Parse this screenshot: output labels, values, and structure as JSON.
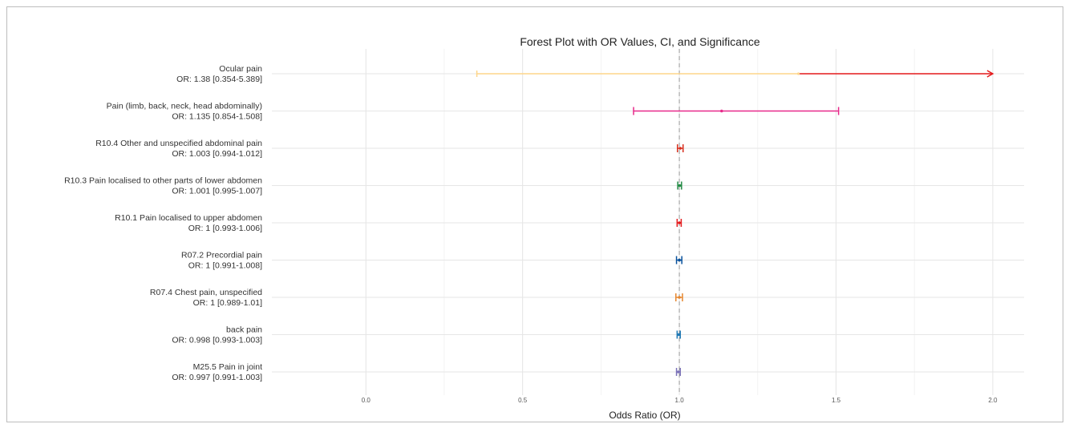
{
  "chart_data": {
    "type": "forest",
    "title": "Forest Plot with OR Values, CI, and Significance",
    "xlabel": "Odds Ratio (OR)",
    "ylabel": "",
    "xlim": [
      -0.3,
      2.1
    ],
    "xticks": [
      0.0,
      0.5,
      1.0,
      1.5,
      2.0
    ],
    "xtick_labels": [
      "0.0",
      "0.5",
      "1.0",
      "1.5",
      "2.0"
    ],
    "reference_line": 1.0,
    "grid": true,
    "rows": [
      {
        "label": "Ocular pain",
        "or_text": "OR: 1.38 [0.354-5.389]",
        "or": 1.38,
        "lower": 0.354,
        "upper": 5.389,
        "color": "#fdd58a",
        "upper_color": "#e41a1c",
        "truncated_at": 2.0
      },
      {
        "label": "Pain (limb, back, neck, head abdominally)",
        "or_text": "OR: 1.135 [0.854-1.508]",
        "or": 1.135,
        "lower": 0.854,
        "upper": 1.508,
        "color": "#e7298a"
      },
      {
        "label": "R10.4 Other and unspecified abdominal pain",
        "or_text": "OR: 1.003 [0.994-1.012]",
        "or": 1.003,
        "lower": 0.994,
        "upper": 1.012,
        "color": "#d7301f"
      },
      {
        "label": "R10.3 Pain localised to other parts of lower abdomen",
        "or_text": "OR: 1.001 [0.995-1.007]",
        "or": 1.001,
        "lower": 0.995,
        "upper": 1.007,
        "color": "#238b45"
      },
      {
        "label": "R10.1 Pain localised to upper abdomen",
        "or_text": "OR: 1 [0.993-1.006]",
        "or": 1.0,
        "lower": 0.993,
        "upper": 1.006,
        "color": "#e31a1c"
      },
      {
        "label": "R07.2 Precordial pain",
        "or_text": "OR: 1 [0.991-1.008]",
        "or": 1.0,
        "lower": 0.991,
        "upper": 1.008,
        "color": "#08519c"
      },
      {
        "label": "R07.4 Chest pain, unspecified",
        "or_text": "OR: 1 [0.989-1.01]",
        "or": 1.0,
        "lower": 0.989,
        "upper": 1.01,
        "color": "#e6862e"
      },
      {
        "label": "back pain",
        "or_text": "OR: 0.998 [0.993-1.003]",
        "or": 0.998,
        "lower": 0.993,
        "upper": 1.003,
        "color": "#1f78b4"
      },
      {
        "label": "M25.5 Pain in joint",
        "or_text": "OR: 0.997 [0.991-1.003]",
        "or": 0.997,
        "lower": 0.991,
        "upper": 1.003,
        "color": "#7b72b8"
      }
    ]
  }
}
